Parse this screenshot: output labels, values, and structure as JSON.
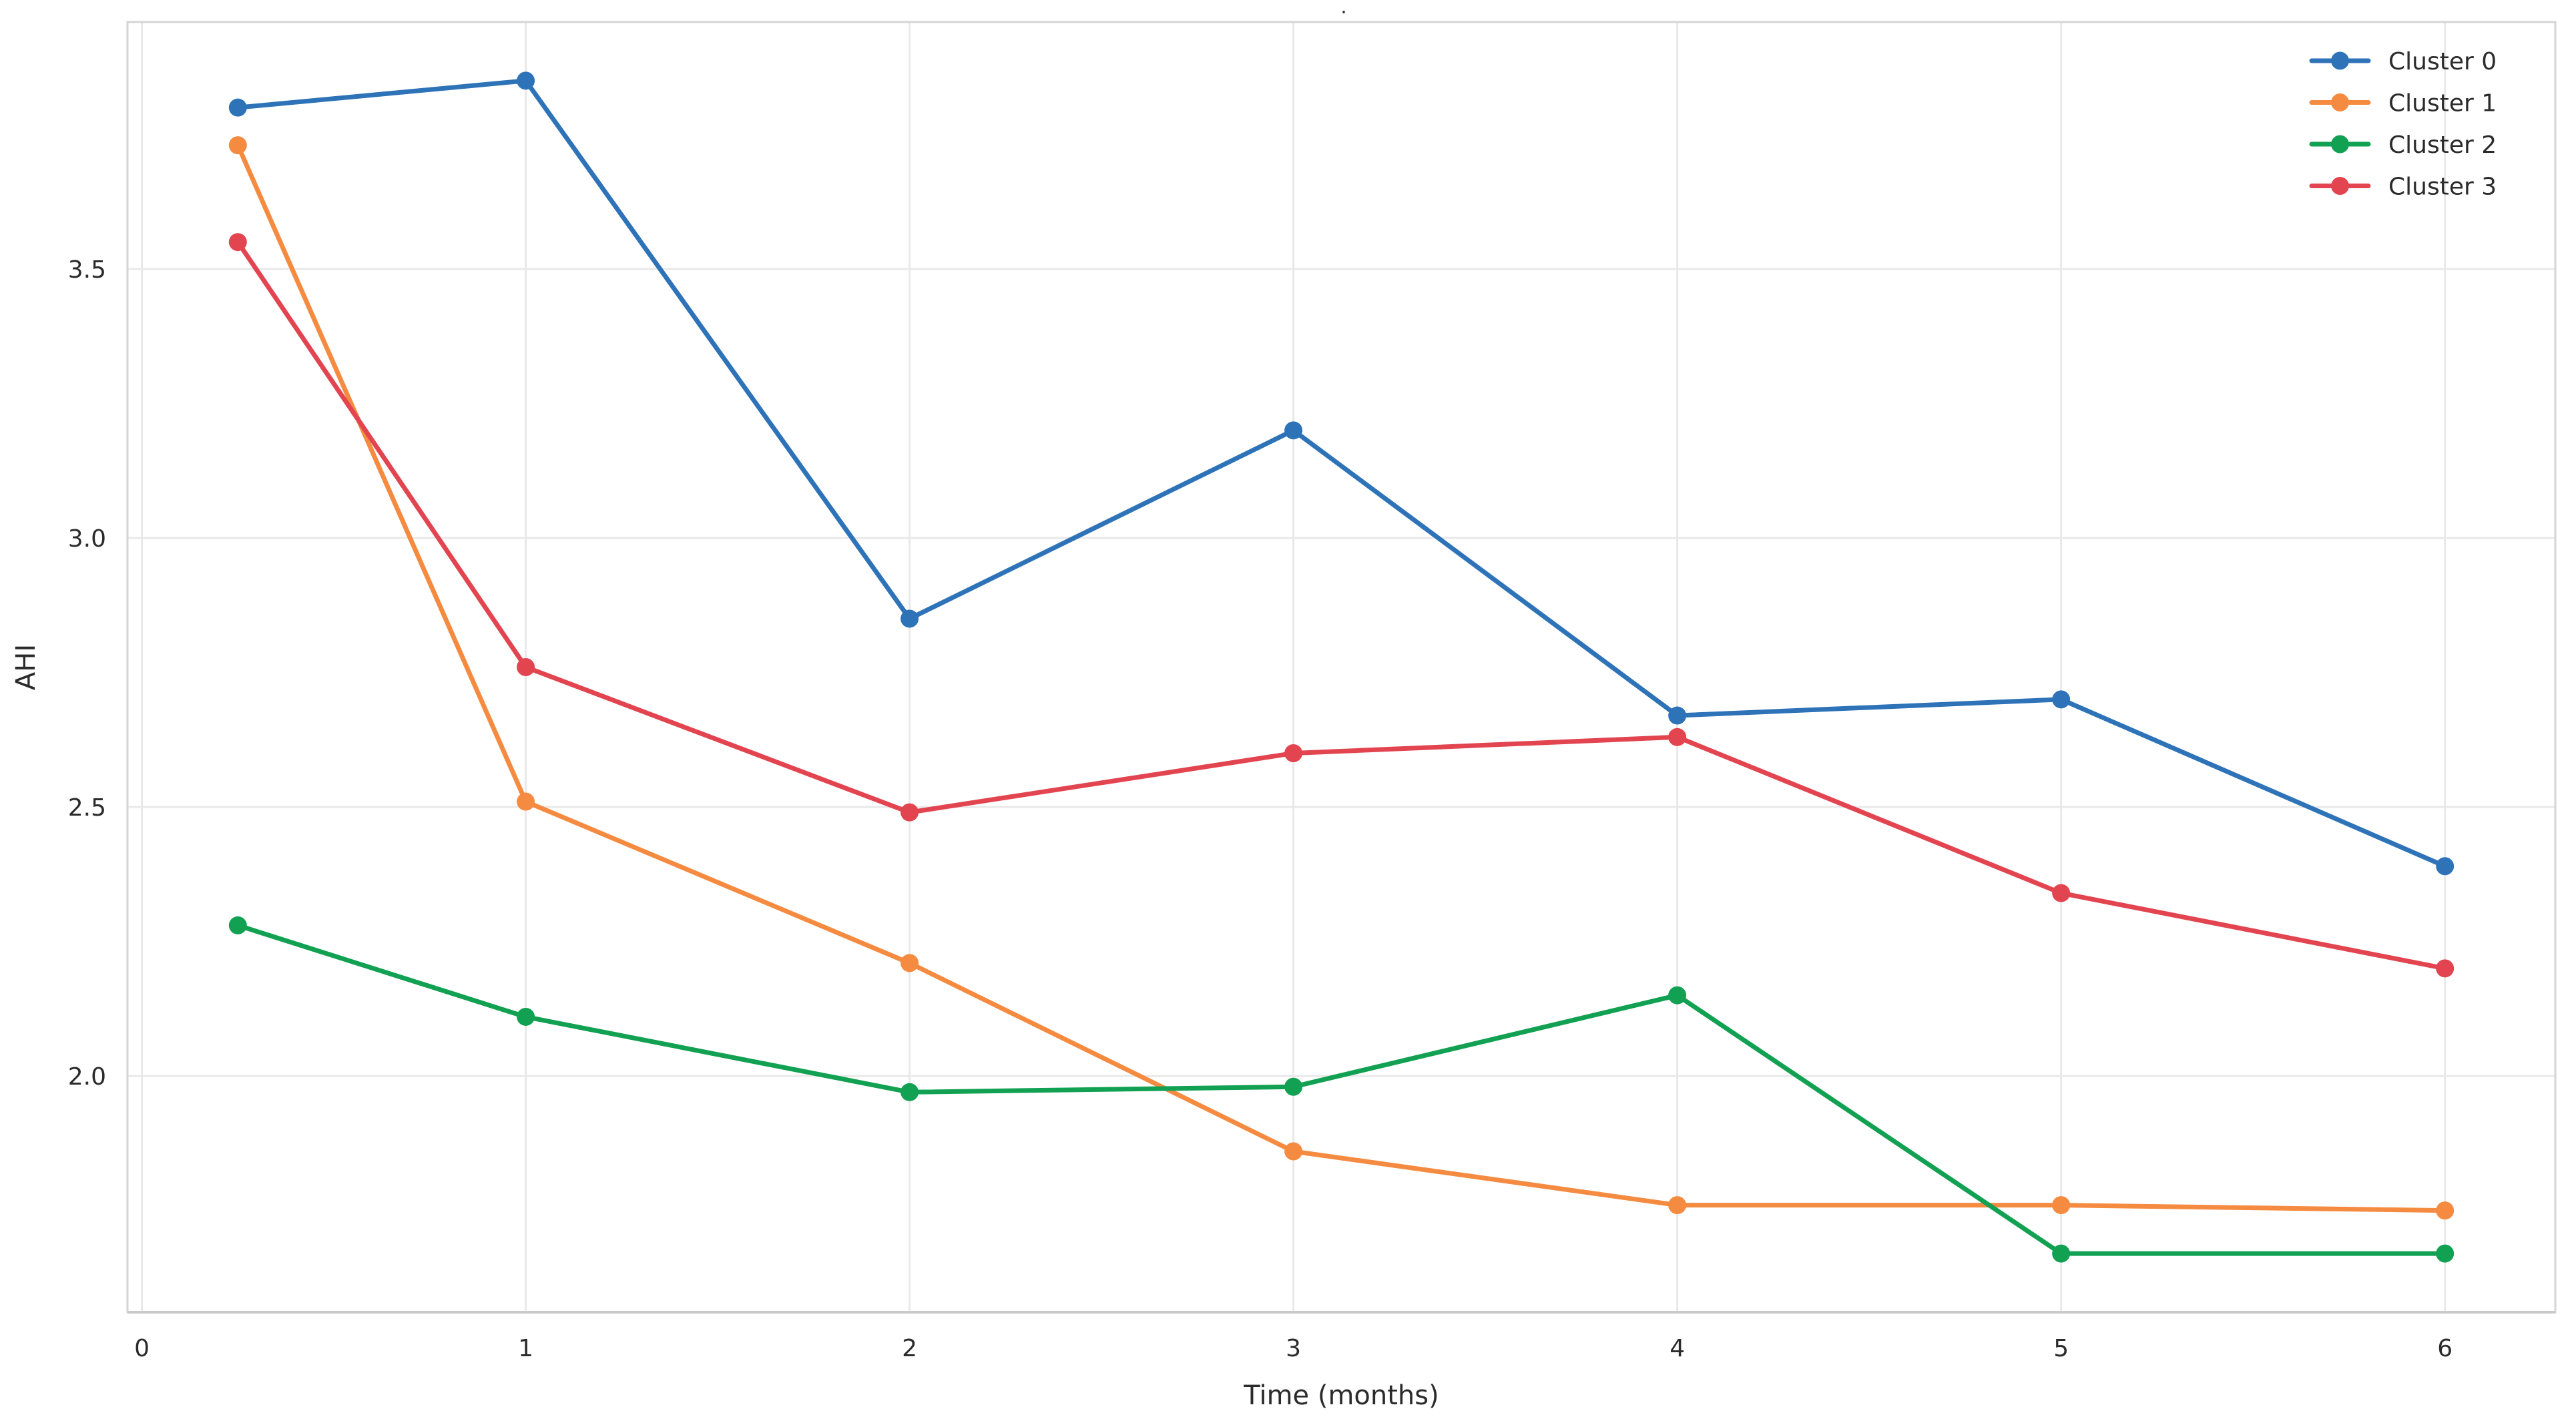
{
  "figure": {
    "background": "#ffffff",
    "title_dot": "."
  },
  "chart_data": {
    "type": "line",
    "title": "",
    "xlabel": "Time (months)",
    "ylabel": "AHI",
    "x": [
      0.25,
      1,
      2,
      3,
      4,
      5,
      6
    ],
    "series": [
      {
        "name": "Cluster 0",
        "color": "#2e73b8",
        "values": [
          3.8,
          3.85,
          2.85,
          3.2,
          2.67,
          2.7,
          2.39
        ]
      },
      {
        "name": "Cluster 1",
        "color": "#f58b41",
        "values": [
          3.73,
          2.51,
          2.21,
          1.86,
          1.76,
          1.76,
          1.75
        ]
      },
      {
        "name": "Cluster 2",
        "color": "#12a152",
        "values": [
          2.28,
          2.11,
          1.97,
          1.98,
          2.15,
          1.67,
          1.67
        ]
      },
      {
        "name": "Cluster 3",
        "color": "#e24450",
        "values": [
          3.55,
          2.76,
          2.49,
          2.6,
          2.63,
          2.34,
          2.2
        ]
      }
    ],
    "xticks": [
      0,
      1,
      2,
      3,
      4,
      5,
      6
    ],
    "yticks": [
      2.0,
      2.5,
      3.0,
      3.5
    ],
    "xlim": [
      -0.0375,
      6.2875
    ],
    "ylim": [
      1.561,
      3.959
    ],
    "grid": true,
    "legend_position": "upper right",
    "legend_entries": [
      "Cluster 0",
      "Cluster 1",
      "Cluster 2",
      "Cluster 3"
    ]
  },
  "style": {
    "grid_color": "#e9e9e9",
    "spine_color": "#d4d4d4",
    "bottom_spine_color": "#c9c9c9",
    "text_color": "#2b2b2b",
    "marker_radius": 13.5,
    "line_width": 7
  }
}
